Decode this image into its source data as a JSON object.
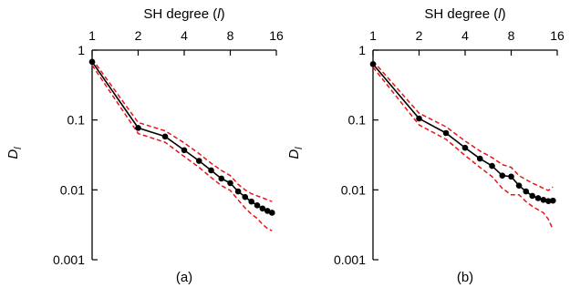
{
  "chart_data": [
    {
      "type": "line",
      "subtitle": "(a)",
      "x_axis": {
        "label_prefix": "SH degree (",
        "label_var": "l",
        "label_suffix": ")",
        "scale": "log",
        "ticks": [
          1,
          2,
          4,
          8,
          16
        ],
        "tick_labels": [
          "1",
          "2",
          "4",
          "8",
          "16"
        ],
        "position": "top",
        "range": [
          1,
          16
        ]
      },
      "y_axis": {
        "label_main": "D",
        "label_sub": "l",
        "scale": "log",
        "ticks": [
          1,
          0.1,
          0.01,
          0.001
        ],
        "tick_labels": [
          "1",
          "0.1",
          "0.01",
          "0.001"
        ],
        "range": [
          0.001,
          1
        ]
      },
      "grid": false,
      "legend": "none",
      "series": [
        {
          "role": "mean",
          "style": "solid-with-markers",
          "color": "#000000",
          "x": [
            1,
            2,
            3,
            4,
            5,
            6,
            7,
            8,
            9,
            10,
            11,
            12,
            13,
            14,
            15
          ],
          "y": [
            0.68,
            0.077,
            0.058,
            0.037,
            0.026,
            0.019,
            0.0145,
            0.0125,
            0.0095,
            0.0079,
            0.0068,
            0.006,
            0.0054,
            0.005,
            0.0047
          ]
        },
        {
          "role": "upper-bound",
          "style": "dashed",
          "color": "#e8141a",
          "x": [
            1,
            2,
            3,
            4,
            5,
            6,
            7,
            8,
            9,
            10,
            11,
            12,
            13,
            14,
            15
          ],
          "y": [
            0.75,
            0.092,
            0.07,
            0.047,
            0.033,
            0.024,
            0.019,
            0.016,
            0.012,
            0.01,
            0.0088,
            0.0082,
            0.0077,
            0.0072,
            0.0068
          ]
        },
        {
          "role": "lower-bound",
          "style": "dashed",
          "color": "#e8141a",
          "x": [
            1,
            2,
            3,
            4,
            5,
            6,
            7,
            8,
            9,
            10,
            11,
            12,
            13,
            14,
            15
          ],
          "y": [
            0.61,
            0.064,
            0.048,
            0.03,
            0.021,
            0.015,
            0.0115,
            0.0098,
            0.0072,
            0.0055,
            0.0045,
            0.0039,
            0.0032,
            0.0028,
            0.0026
          ]
        }
      ]
    },
    {
      "type": "line",
      "subtitle": "(b)",
      "x_axis": {
        "label_prefix": "SH degree (",
        "label_var": "l",
        "label_suffix": ")",
        "scale": "log",
        "ticks": [
          1,
          2,
          4,
          8,
          16
        ],
        "tick_labels": [
          "1",
          "2",
          "4",
          "8",
          "16"
        ],
        "position": "top",
        "range": [
          1,
          16
        ]
      },
      "y_axis": {
        "label_main": "D",
        "label_sub": "l",
        "scale": "log",
        "ticks": [
          1,
          0.1,
          0.01,
          0.001
        ],
        "tick_labels": [
          "1",
          "0.1",
          "0.01",
          "0.001"
        ],
        "range": [
          0.001,
          1
        ]
      },
      "grid": false,
      "legend": "none",
      "series": [
        {
          "role": "mean",
          "style": "solid-with-markers",
          "color": "#000000",
          "x": [
            1,
            2,
            3,
            4,
            5,
            6,
            7,
            8,
            9,
            10,
            11,
            12,
            13,
            14,
            15
          ],
          "y": [
            0.63,
            0.105,
            0.065,
            0.04,
            0.028,
            0.022,
            0.016,
            0.0155,
            0.0115,
            0.0095,
            0.0082,
            0.0076,
            0.0072,
            0.0069,
            0.007
          ]
        },
        {
          "role": "upper-bound",
          "style": "dashed",
          "color": "#e8141a",
          "x": [
            1,
            2,
            3,
            4,
            5,
            6,
            7,
            8,
            9,
            10,
            11,
            12,
            13,
            14,
            15
          ],
          "y": [
            0.7,
            0.125,
            0.08,
            0.05,
            0.036,
            0.029,
            0.023,
            0.021,
            0.016,
            0.014,
            0.0125,
            0.0115,
            0.0105,
            0.0098,
            0.011
          ]
        },
        {
          "role": "lower-bound",
          "style": "dashed",
          "color": "#e8141a",
          "x": [
            1,
            2,
            3,
            4,
            5,
            6,
            7,
            8,
            9,
            10,
            11,
            12,
            13,
            14,
            15
          ],
          "y": [
            0.57,
            0.085,
            0.053,
            0.031,
            0.021,
            0.0155,
            0.0105,
            0.0085,
            0.0085,
            0.0068,
            0.0058,
            0.0052,
            0.0047,
            0.0038,
            0.0027
          ]
        }
      ]
    }
  ]
}
